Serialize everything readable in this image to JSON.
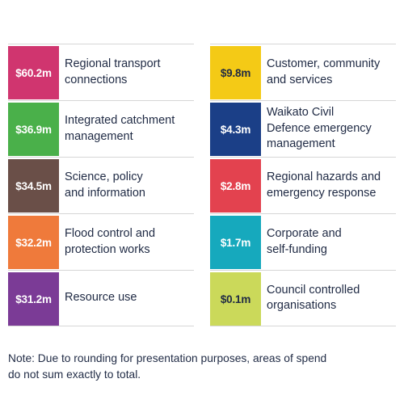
{
  "left_items": [
    {
      "amount": "$60.2m",
      "label": "Regional transport\nconnections",
      "color": "#d0356f"
    },
    {
      "amount": "$36.9m",
      "label": "Integrated catchment\nmanagement",
      "color": "#4ab04a"
    },
    {
      "amount": "$34.5m",
      "label": "Science, policy\nand information",
      "color": "#6a4f48"
    },
    {
      "amount": "$32.2m",
      "label": "Flood control and\nprotection works",
      "color": "#ef7a3b"
    },
    {
      "amount": "$31.2m",
      "label": "Resource use",
      "color": "#7b3b96"
    }
  ],
  "right_items": [
    {
      "amount": "$9.8m",
      "label": "Customer, community\nand services",
      "color": "#f4ca16"
    },
    {
      "amount": "$4.3m",
      "label": "Waikato Civil\nDefence emergency\nmanagement",
      "color": "#1b3f87"
    },
    {
      "amount": "$2.8m",
      "label": "Regional hazards and\nemergency response",
      "color": "#e3424f"
    },
    {
      "amount": "$1.7m",
      "label": "Corporate and\nself-funding",
      "color": "#16a9bd"
    },
    {
      "amount": "$0.1m",
      "label": "Council controlled\norganisations",
      "color": "#cbd95a"
    }
  ],
  "note": "Note: Due to rounding for presentation purposes, areas of spend\ndo not sum exactly to total."
}
